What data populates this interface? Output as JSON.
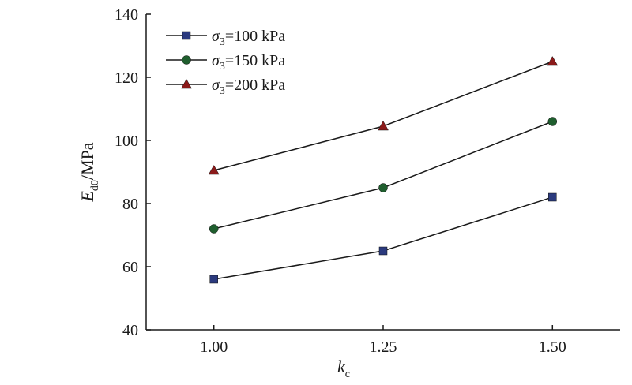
{
  "chart_data": {
    "type": "line",
    "x": [
      1.0,
      1.25,
      1.5
    ],
    "x_tick_labels": [
      "1.00",
      "1.25",
      "1.50"
    ],
    "y_ticks": [
      40,
      60,
      80,
      100,
      120,
      140
    ],
    "xlim": [
      0.9,
      1.6
    ],
    "ylim": [
      40,
      140
    ],
    "xlabel": {
      "main": "k",
      "sub": "c"
    },
    "ylabel": {
      "main": "E",
      "sub": "d0",
      "unit": "/MPa"
    },
    "grid": false,
    "legend_position": "top-left",
    "series": [
      {
        "name": {
          "symbol": "σ",
          "sub": "3",
          "text": "=100 kPa"
        },
        "marker": "square",
        "color": "#2b3a7e",
        "values": [
          56,
          65,
          82
        ]
      },
      {
        "name": {
          "symbol": "σ",
          "sub": "3",
          "text": "=150 kPa"
        },
        "marker": "circle",
        "color": "#1f5e2e",
        "values": [
          72,
          85,
          106
        ]
      },
      {
        "name": {
          "symbol": "σ",
          "sub": "3",
          "text": "=200 kPa"
        },
        "marker": "triangle",
        "color": "#8b1a1a",
        "values": [
          90.5,
          104.5,
          125
        ]
      }
    ]
  }
}
